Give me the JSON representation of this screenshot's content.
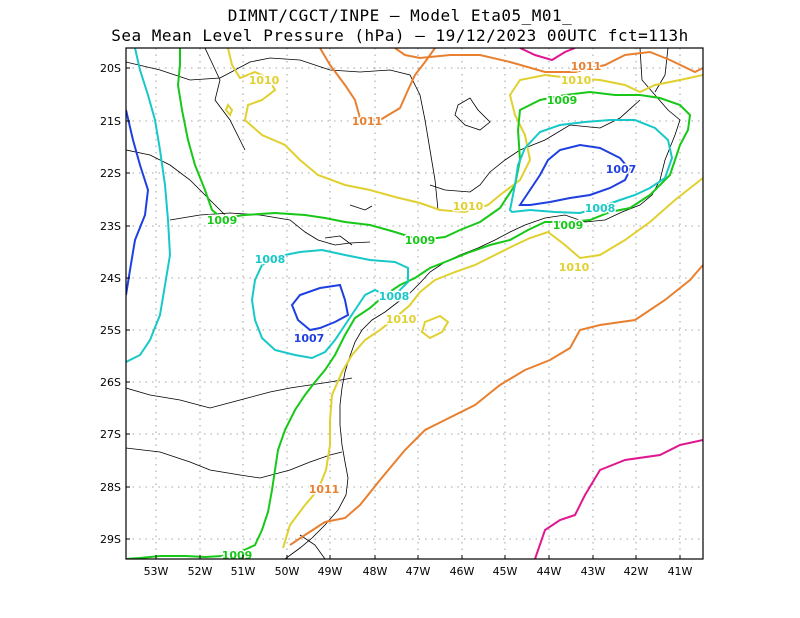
{
  "title": {
    "line1": "DIMNT/CGCT/INPE —  Model Eta05_M01_",
    "line2": "Sea Mean Level Pressure (hPa) — 19/12/2023 00UTC fct=113h"
  },
  "axes": {
    "lat_labels": [
      "20S",
      "21S",
      "22S",
      "23S",
      "24S",
      "25S",
      "26S",
      "27S",
      "28S",
      "29S"
    ],
    "lon_labels": [
      "53W",
      "52W",
      "51W",
      "50W",
      "49W",
      "48W",
      "47W",
      "46W",
      "45W",
      "44W",
      "43W",
      "42W",
      "41W"
    ]
  },
  "colors": {
    "c1007": "#1f3fe0",
    "c1008": "#18c8c8",
    "c1009": "#18c818",
    "c1010": "#e0d030",
    "c1011": "#e88030",
    "c1012": "#e01890",
    "coast": "#000000",
    "grid": "#888888"
  },
  "contour_labels": [
    {
      "text": "1007",
      "level": "c1007"
    },
    {
      "text": "1007",
      "level": "c1007"
    },
    {
      "text": "1008",
      "level": "c1008"
    },
    {
      "text": "1008",
      "level": "c1008"
    },
    {
      "text": "1008",
      "level": "c1008"
    },
    {
      "text": "1009",
      "level": "c1009"
    },
    {
      "text": "1009",
      "level": "c1009"
    },
    {
      "text": "1009",
      "level": "c1009"
    },
    {
      "text": "1009",
      "level": "c1009"
    },
    {
      "text": "1009",
      "level": "c1009"
    },
    {
      "text": "1010",
      "level": "c1010"
    },
    {
      "text": "1010",
      "level": "c1010"
    },
    {
      "text": "1010",
      "level": "c1010"
    },
    {
      "text": "1010",
      "level": "c1010"
    },
    {
      "text": "1010",
      "level": "c1010"
    },
    {
      "text": "1011",
      "level": "c1011"
    },
    {
      "text": "1011",
      "level": "c1011"
    },
    {
      "text": "1011",
      "level": "c1011"
    }
  ]
}
